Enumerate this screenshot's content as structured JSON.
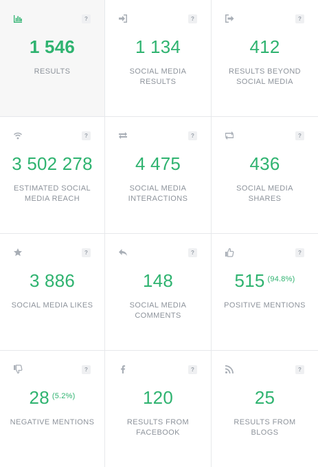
{
  "tiles": [
    {
      "value": "1 546",
      "suffix": "",
      "label": "RESULTS",
      "icon": "bar-chart-icon"
    },
    {
      "value": "1 134",
      "suffix": "",
      "label": "SOCIAL MEDIA RESULTS",
      "icon": "sign-in-icon"
    },
    {
      "value": "412",
      "suffix": "",
      "label": "RESULTS BEYOND SOCIAL MEDIA",
      "icon": "sign-out-icon"
    },
    {
      "value": "3 502 278",
      "suffix": "",
      "label": "ESTIMATED SOCIAL MEDIA REACH",
      "icon": "wifi-icon"
    },
    {
      "value": "4 475",
      "suffix": "",
      "label": "SOCIAL MEDIA INTERACTIONS",
      "icon": "exchange-icon"
    },
    {
      "value": "436",
      "suffix": "",
      "label": "SOCIAL MEDIA SHARES",
      "icon": "retweet-icon"
    },
    {
      "value": "3 886",
      "suffix": "",
      "label": "SOCIAL MEDIA LIKES",
      "icon": "star-icon"
    },
    {
      "value": "148",
      "suffix": "",
      "label": "SOCIAL MEDIA COMMENTS",
      "icon": "reply-icon"
    },
    {
      "value": "515",
      "suffix": "(94.8%)",
      "label": "POSITIVE MENTIONS",
      "icon": "thumbs-up-icon"
    },
    {
      "value": "28",
      "suffix": "(5.2%)",
      "label": "NEGATIVE MENTIONS",
      "icon": "thumbs-down-icon"
    },
    {
      "value": "120",
      "suffix": "",
      "label": "RESULTS FROM FACEBOOK",
      "icon": "facebook-icon"
    },
    {
      "value": "25",
      "suffix": "",
      "label": "RESULTS FROM BLOGS",
      "icon": "rss-icon"
    }
  ],
  "help_label": "?",
  "colors": {
    "accent": "#2fb370",
    "label": "#8d939b",
    "icon": "#a8aeb6",
    "active_bg": "#f7f7f7"
  }
}
